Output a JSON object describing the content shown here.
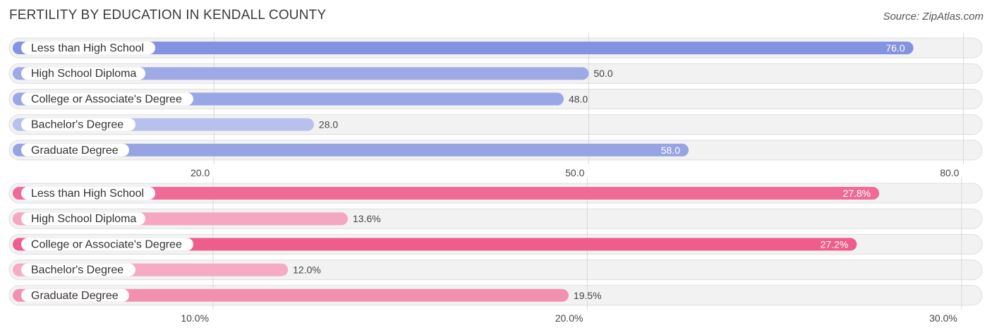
{
  "title": "FERTILITY BY EDUCATION IN KENDALL COUNTY",
  "source": "Source: ZipAtlas.com",
  "chart_data": [
    {
      "type": "bar",
      "orientation": "horizontal",
      "categories": [
        "Less than High School",
        "High School Diploma",
        "College or Associate's Degree",
        "Bachelor's Degree",
        "Graduate Degree"
      ],
      "values": [
        76.0,
        50.0,
        48.0,
        28.0,
        58.0
      ],
      "value_labels": [
        "76.0",
        "50.0",
        "48.0",
        "28.0",
        "58.0"
      ],
      "xlim": [
        3.6,
        81.5
      ],
      "ticks": [
        20.0,
        50.0,
        80.0
      ],
      "tick_labels": [
        "20.0",
        "50.0",
        "80.0"
      ],
      "colors": [
        "#8393e0",
        "#9eaae6",
        "#9aa7e6",
        "#b8c1ee",
        "#97a4e4"
      ],
      "grid": true
    },
    {
      "type": "bar",
      "orientation": "horizontal",
      "categories": [
        "Less than High School",
        "High School Diploma",
        "College or Associate's Degree",
        "Bachelor's Degree",
        "Graduate Degree"
      ],
      "values": [
        27.8,
        13.6,
        27.2,
        12.0,
        19.5
      ],
      "value_labels": [
        "27.8%",
        "13.6%",
        "27.2%",
        "12.0%",
        "19.5%"
      ],
      "xlim": [
        4.55,
        30.55
      ],
      "ticks": [
        10.0,
        20.0,
        30.0
      ],
      "tick_labels": [
        "10.0%",
        "20.0%",
        "30.0%"
      ],
      "colors": [
        "#f06a96",
        "#f5a6c0",
        "#ee5d8c",
        "#f7aac4",
        "#f290b0"
      ],
      "grid": true
    }
  ]
}
